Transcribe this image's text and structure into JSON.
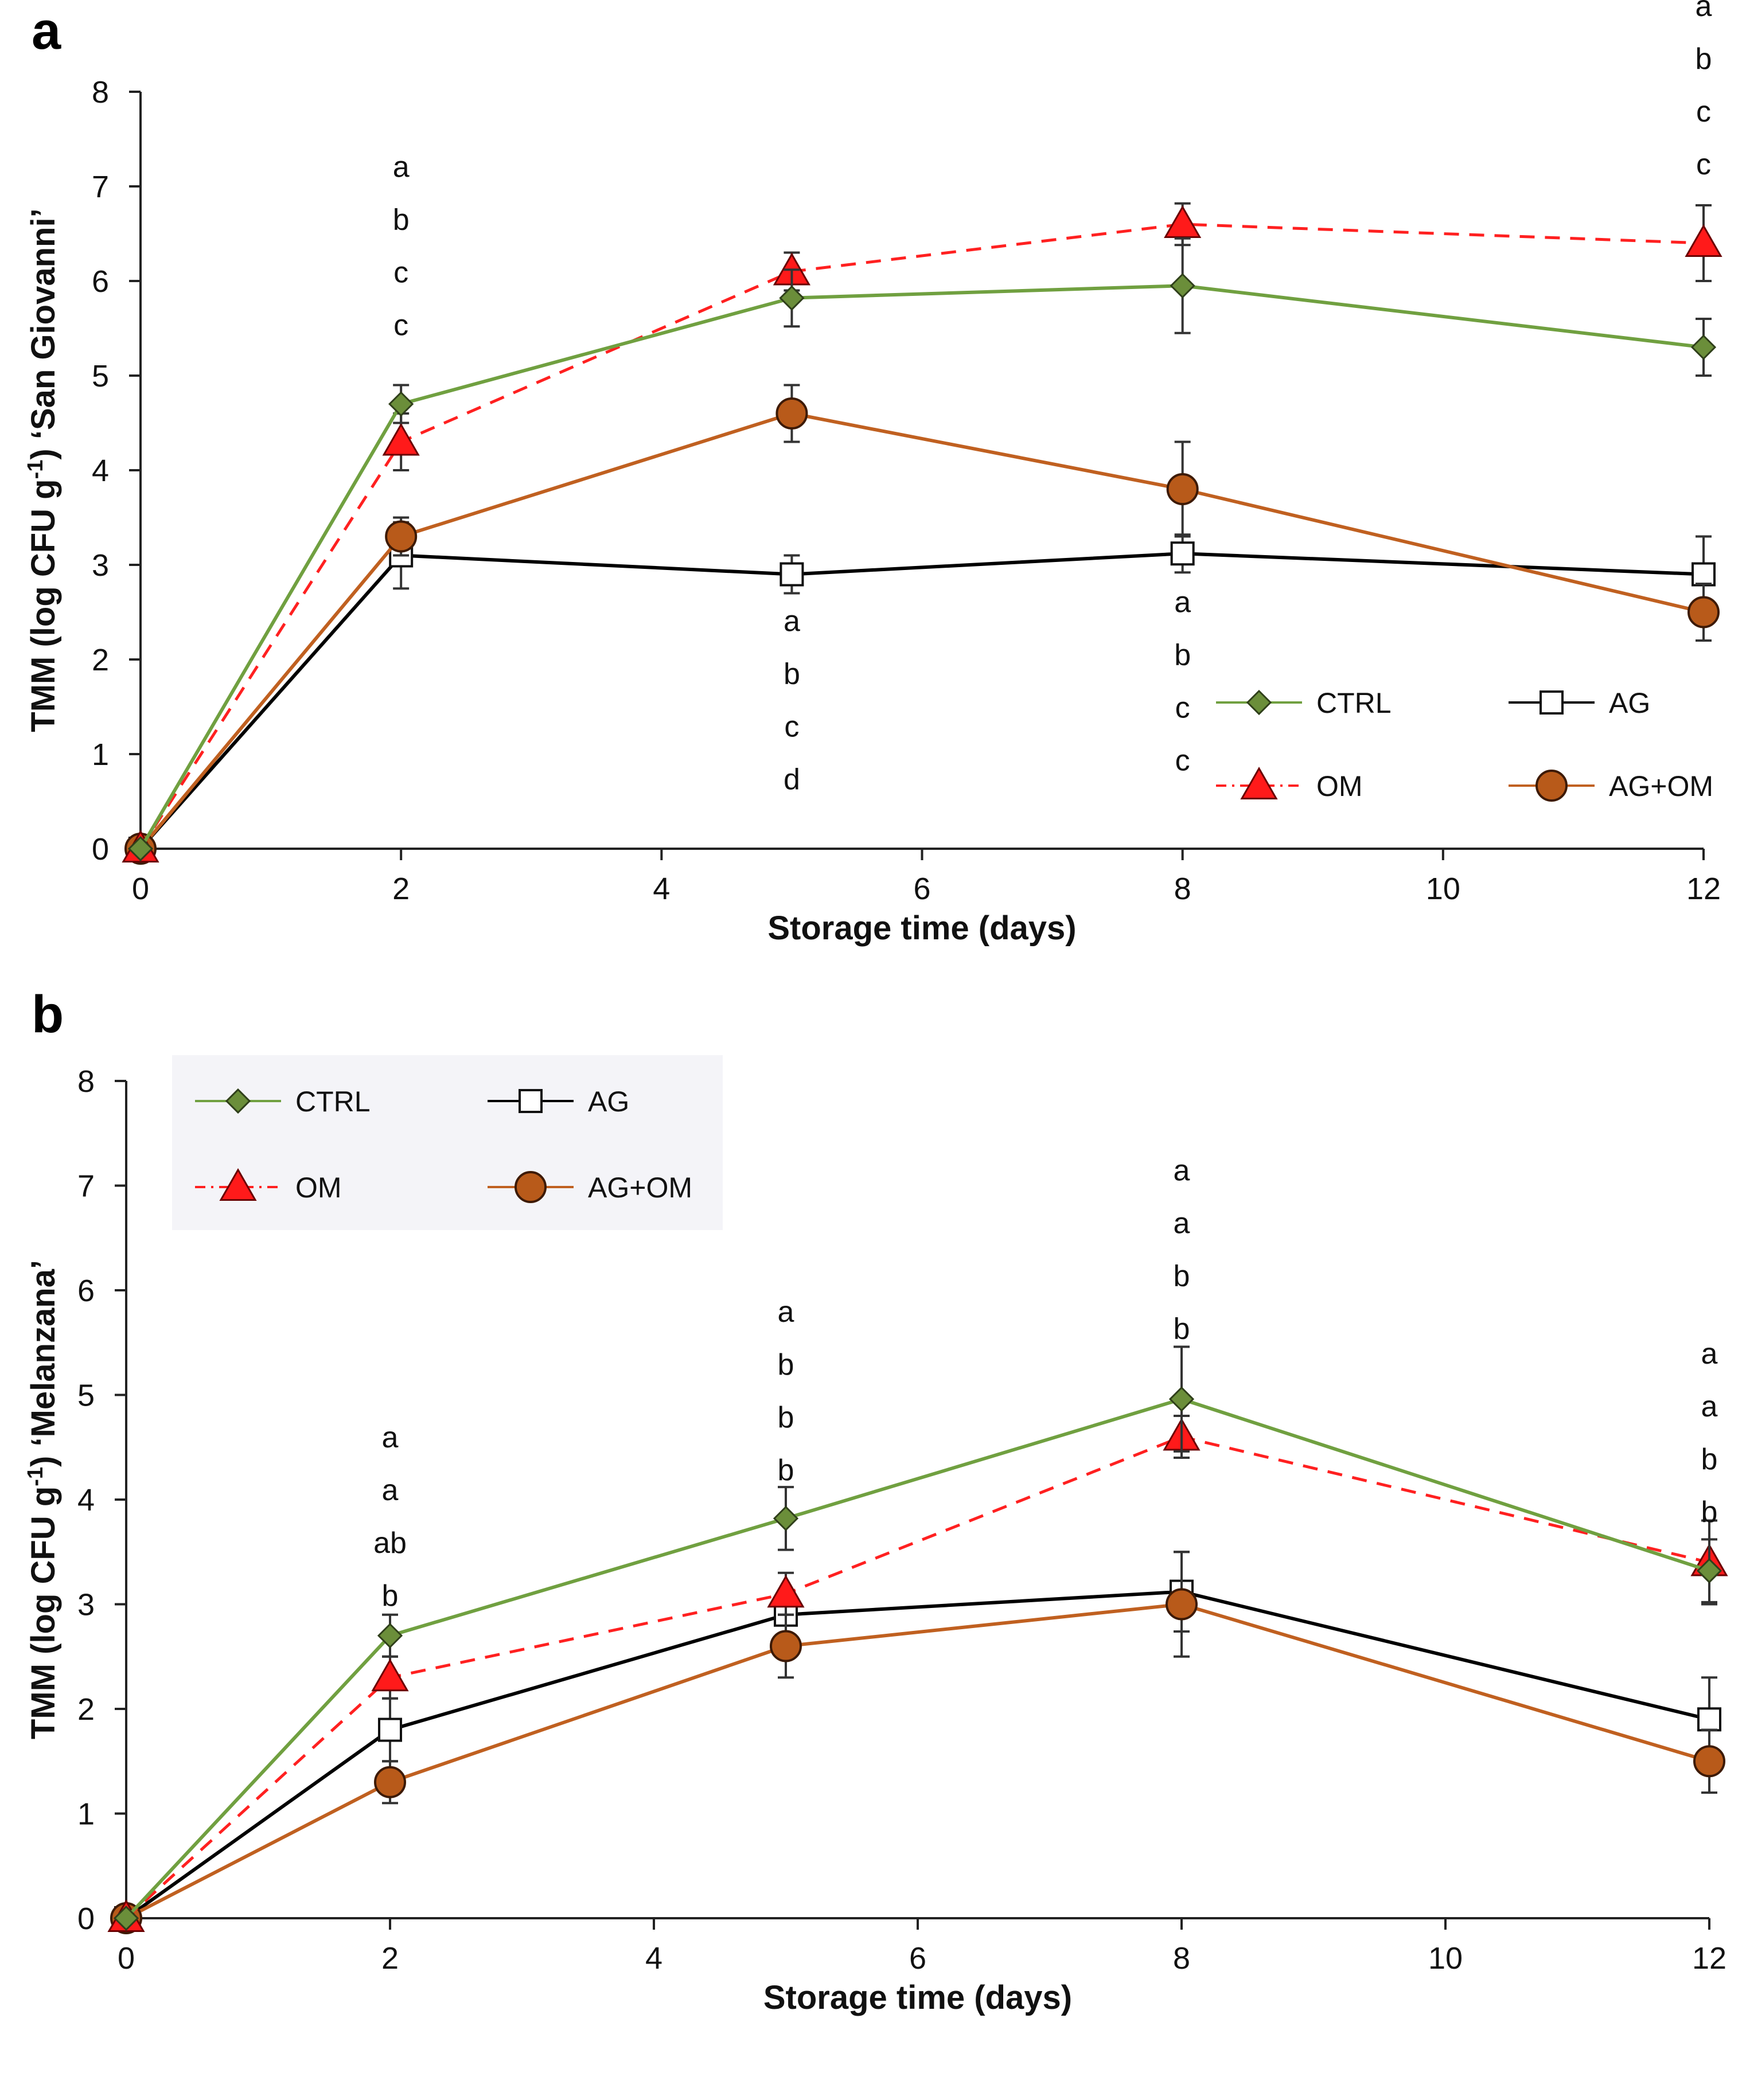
{
  "chart_data": [
    {
      "type": "line",
      "panel_label": "a",
      "title": "",
      "xlabel": "Storage time (days)",
      "ylabel": "TMM (log CFU g-1) ‘San Giovanni’",
      "ylabel_parts": [
        "TMM (log CFU g",
        "-1",
        ") ‘San Giovanni’"
      ],
      "xlim": [
        0,
        12
      ],
      "ylim": [
        0,
        8
      ],
      "xticks": [
        0,
        2,
        4,
        6,
        8,
        10,
        12
      ],
      "yticks": [
        0,
        1,
        2,
        3,
        4,
        5,
        6,
        7,
        8
      ],
      "legend_position": "bottom-right",
      "x": [
        0,
        2,
        5,
        8,
        12
      ],
      "series": [
        {
          "name": "CTRL",
          "color": "#70a040",
          "marker": "diamond",
          "dash": "solid",
          "values": [
            0,
            4.7,
            5.82,
            5.95,
            5.3
          ],
          "errors": [
            0,
            0.2,
            0.3,
            0.5,
            0.3
          ]
        },
        {
          "name": "AG",
          "color": "#000000",
          "marker": "square-open",
          "dash": "solid",
          "values": [
            0,
            3.1,
            2.9,
            3.12,
            2.9
          ],
          "errors": [
            0,
            0.35,
            0.2,
            0.2,
            0.4
          ]
        },
        {
          "name": "OM",
          "color": "#ff2020",
          "marker": "triangle",
          "dash": "dashed",
          "values": [
            0,
            4.3,
            6.1,
            6.6,
            6.4
          ],
          "errors": [
            0,
            0.3,
            0.2,
            0.22,
            0.4
          ]
        },
        {
          "name": "AG+OM",
          "color": "#c06020",
          "marker": "circle",
          "dash": "solid",
          "values": [
            0,
            3.3,
            4.6,
            3.8,
            2.5
          ],
          "errors": [
            0,
            0.2,
            0.3,
            0.5,
            0.3
          ]
        }
      ],
      "annotations": [
        {
          "x": 2,
          "y_top": 7.1,
          "letters": [
            "a",
            "b",
            "c",
            "c"
          ]
        },
        {
          "x": 5,
          "y_top": 2.3,
          "letters": [
            "a",
            "b",
            "c",
            "d"
          ]
        },
        {
          "x": 8,
          "y_top": 2.5,
          "letters": [
            "a",
            "b",
            "c",
            "c"
          ]
        },
        {
          "x": 12,
          "y_top": 8.8,
          "letters": [
            "a",
            "b",
            "c",
            "c"
          ]
        }
      ]
    },
    {
      "type": "line",
      "panel_label": "b",
      "title": "",
      "xlabel": "Storage time (days)",
      "ylabel": "TMM (log CFU g-1) ‘Melanzana’",
      "ylabel_parts": [
        "TMM (log CFU g",
        "-1",
        ") ‘Melanzana’"
      ],
      "xlim": [
        0,
        12
      ],
      "ylim": [
        0,
        8
      ],
      "xticks": [
        0,
        2,
        4,
        6,
        8,
        10,
        12
      ],
      "yticks": [
        0,
        1,
        2,
        3,
        4,
        5,
        6,
        7,
        8
      ],
      "legend_position": "top-left",
      "x": [
        0,
        2,
        5,
        8,
        12
      ],
      "series": [
        {
          "name": "CTRL",
          "color": "#70a040",
          "marker": "diamond",
          "dash": "solid",
          "values": [
            0,
            2.7,
            3.82,
            4.96,
            3.32
          ],
          "errors": [
            0,
            0.2,
            0.3,
            0.5,
            0.3
          ]
        },
        {
          "name": "AG",
          "color": "#000000",
          "marker": "square-open",
          "dash": "solid",
          "values": [
            0,
            1.8,
            2.9,
            3.12,
            1.9
          ],
          "errors": [
            0,
            0.3,
            0.2,
            0.38,
            0.4
          ]
        },
        {
          "name": "OM",
          "color": "#ff2020",
          "marker": "triangle",
          "dash": "dashed",
          "values": [
            0,
            2.3,
            3.1,
            4.6,
            3.4
          ],
          "errors": [
            0,
            0.2,
            0.2,
            0.2,
            0.4
          ]
        },
        {
          "name": "AG+OM",
          "color": "#c06020",
          "marker": "circle",
          "dash": "solid",
          "values": [
            0,
            1.3,
            2.6,
            3.0,
            1.5
          ],
          "errors": [
            0,
            0.2,
            0.3,
            0.5,
            0.3
          ]
        }
      ],
      "annotations": [
        {
          "x": 2,
          "y_top": 4.5,
          "letters": [
            "a",
            "a",
            "ab",
            "b"
          ]
        },
        {
          "x": 5,
          "y_top": 5.7,
          "letters": [
            "a",
            "b",
            "b",
            "b"
          ]
        },
        {
          "x": 8,
          "y_top": 7.05,
          "letters": [
            "a",
            "a",
            "b",
            "b"
          ]
        },
        {
          "x": 12,
          "y_top": 5.3,
          "letters": [
            "a",
            "a",
            "b",
            "b"
          ]
        }
      ]
    }
  ]
}
